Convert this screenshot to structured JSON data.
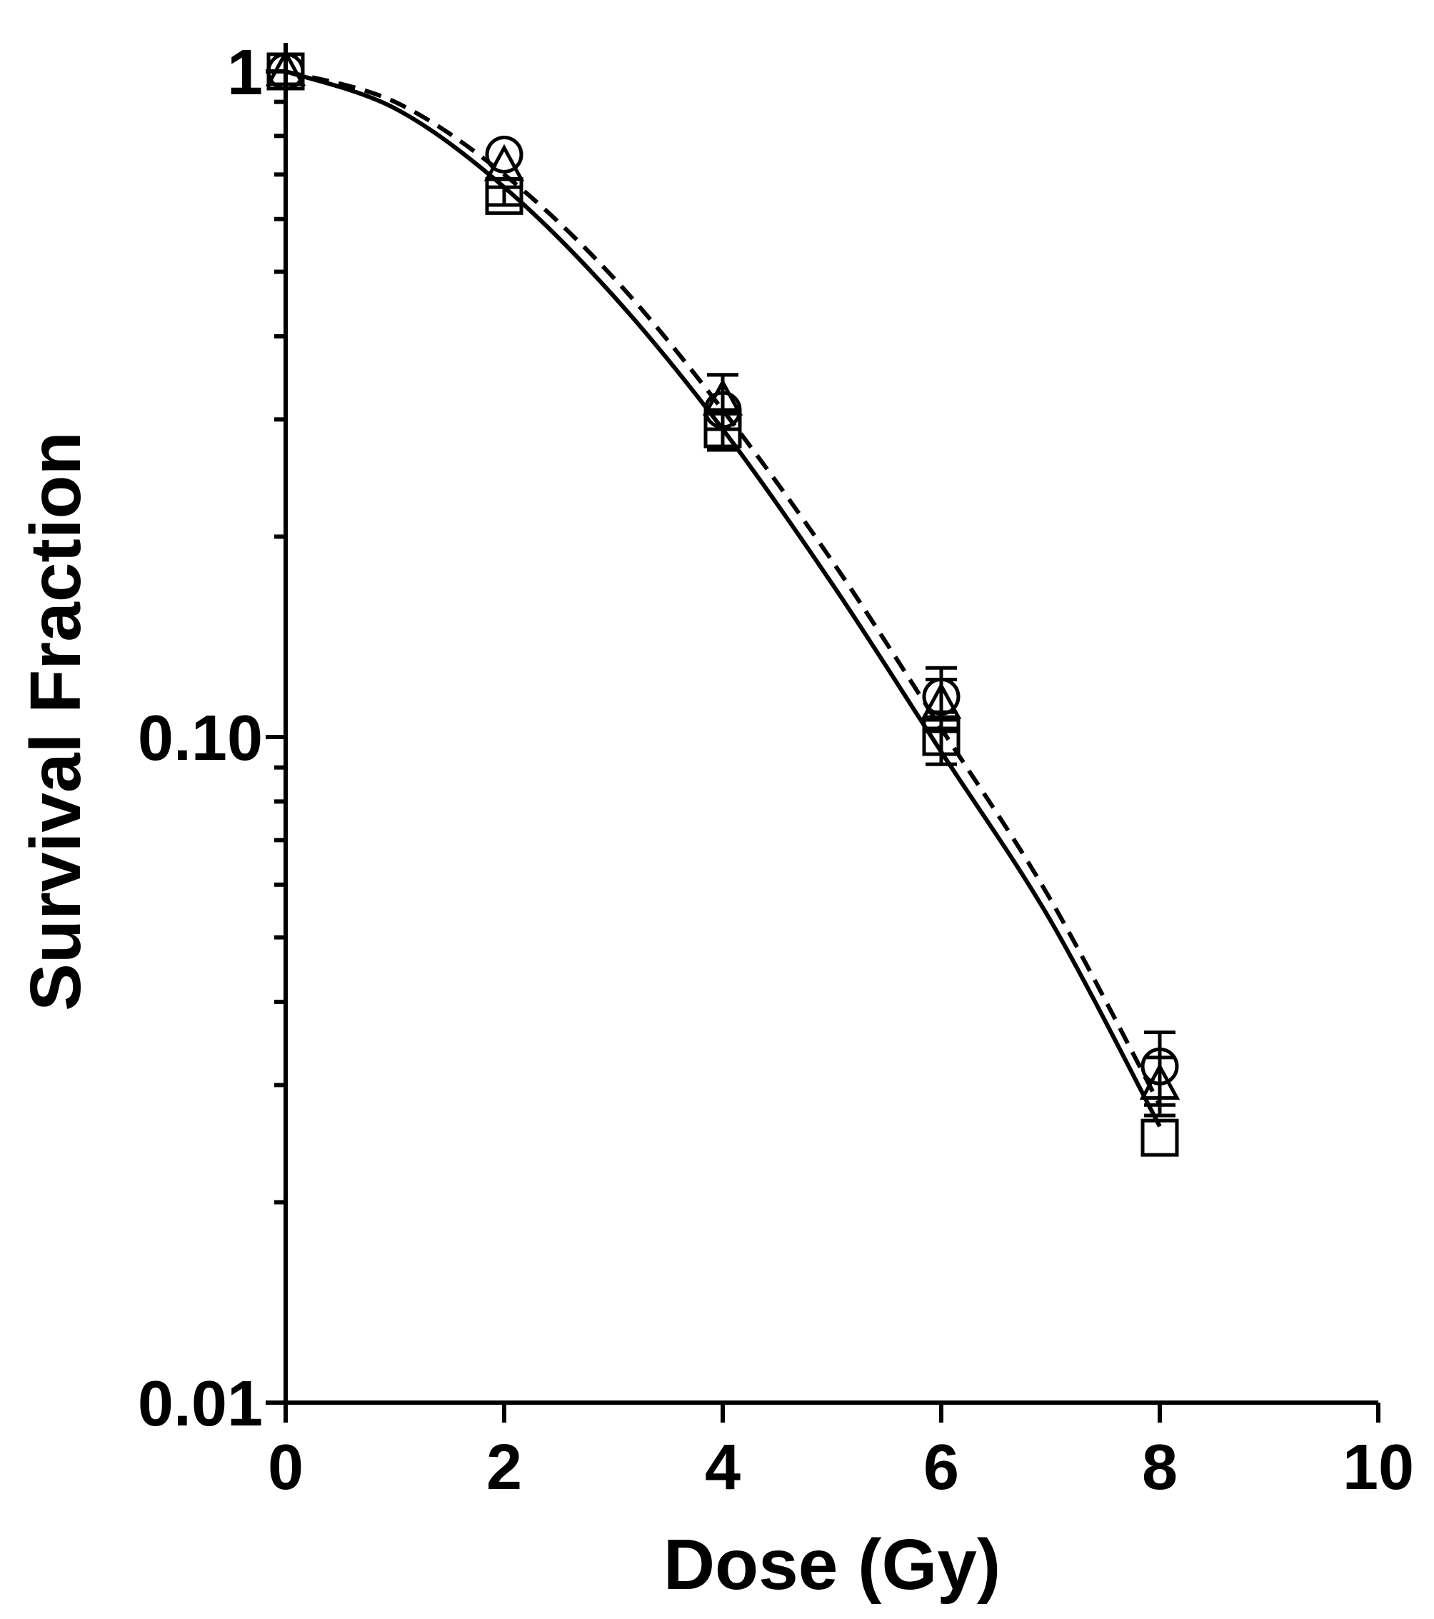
{
  "chart_data": {
    "type": "scatter",
    "title": "",
    "xlabel": "Dose (Gy)",
    "ylabel": "Survival Fraction",
    "xlim": [
      0,
      10
    ],
    "ylim": [
      0.01,
      1
    ],
    "yscale": "log",
    "grid": false,
    "legend": "none",
    "x_ticks": [
      0,
      2,
      4,
      6,
      8,
      10
    ],
    "x_tick_labels": [
      "0",
      "2",
      "4",
      "6",
      "8",
      "10"
    ],
    "y_ticks": [
      1,
      0.1,
      0.01
    ],
    "y_tick_labels": [
      "1",
      "0.10",
      "0.01"
    ],
    "series": [
      {
        "marker": "circle",
        "x": [
          0,
          2,
          4,
          6,
          8
        ],
        "y": [
          1.0,
          0.75,
          0.31,
          0.115,
          0.032
        ],
        "err": [
          0,
          0,
          0.04,
          0.012,
          0.004
        ]
      },
      {
        "marker": "triangle",
        "x": [
          0,
          2,
          4,
          6,
          8
        ],
        "y": [
          1.0,
          0.72,
          0.32,
          0.112,
          0.03
        ],
        "err": [
          0,
          0,
          0.03,
          0.01,
          0.003
        ]
      },
      {
        "marker": "square",
        "x": [
          0,
          2,
          4,
          6,
          8
        ],
        "y": [
          1.0,
          0.65,
          0.29,
          0.1,
          0.025
        ],
        "err": [
          0,
          0.02,
          0.02,
          0.009,
          0
        ]
      }
    ],
    "fits": [
      {
        "style": "solid",
        "x": [
          0,
          1,
          2,
          3,
          4,
          5,
          6,
          7,
          8
        ],
        "y": [
          1.0,
          0.88,
          0.67,
          0.46,
          0.29,
          0.17,
          0.095,
          0.053,
          0.026
        ]
      },
      {
        "style": "dashed",
        "x": [
          0,
          1,
          2,
          3,
          4,
          5,
          6,
          7,
          8
        ],
        "y": [
          1.0,
          0.9,
          0.7,
          0.49,
          0.31,
          0.184,
          0.103,
          0.057,
          0.028
        ]
      }
    ]
  }
}
